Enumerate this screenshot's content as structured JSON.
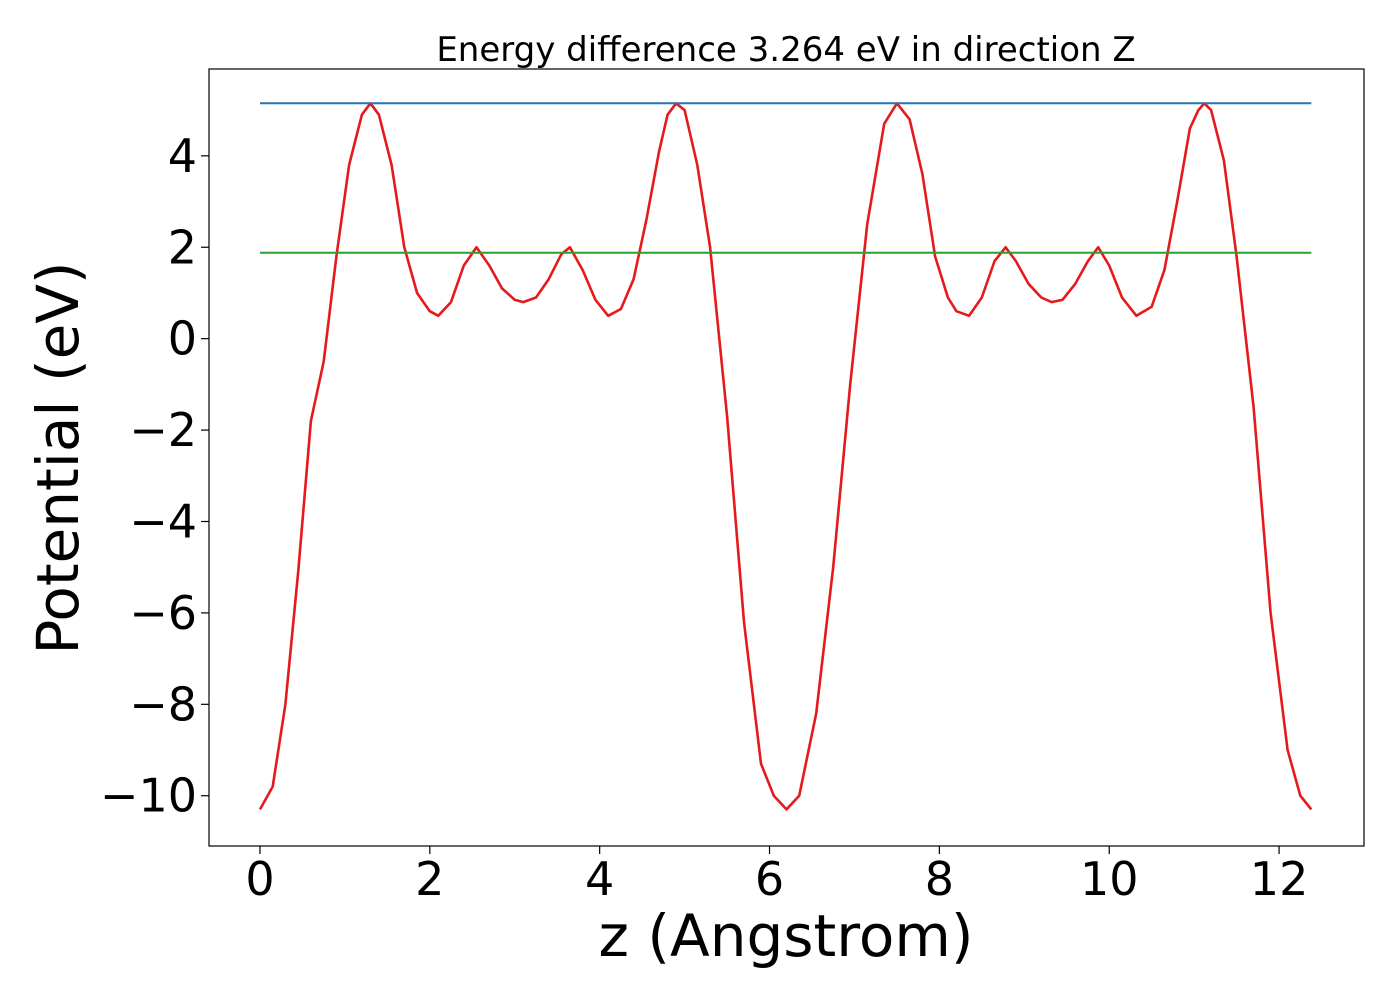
{
  "chart_data": {
    "type": "line",
    "title": "Energy difference 3.264 eV in direction Z",
    "xlabel": "z (Angstrom)",
    "ylabel": "Potential (eV)",
    "xlim": [
      -0.6,
      13.0
    ],
    "ylim": [
      -11.1,
      5.9
    ],
    "xticks": [
      0,
      2,
      4,
      6,
      8,
      10,
      12
    ],
    "yticks": [
      -10,
      -8,
      -6,
      -4,
      -2,
      0,
      2,
      4
    ],
    "xtick_labels": [
      "0",
      "2",
      "4",
      "6",
      "8",
      "10",
      "12"
    ],
    "ytick_labels": [
      "−10",
      "−8",
      "−6",
      "−4",
      "−2",
      "0",
      "2",
      "4"
    ],
    "grid": false,
    "series": [
      {
        "color": "#e41a1c",
        "x": [
          0.0,
          0.15,
          0.3,
          0.45,
          0.6,
          0.75,
          0.9,
          1.05,
          1.2,
          1.3,
          1.4,
          1.55,
          1.7,
          1.85,
          2.0,
          2.1,
          2.25,
          2.4,
          2.55,
          2.7,
          2.85,
          3.0,
          3.1,
          3.25,
          3.4,
          3.55,
          3.65,
          3.8,
          3.95,
          4.1,
          4.25,
          4.4,
          4.55,
          4.7,
          4.8,
          4.9,
          5.0,
          5.15,
          5.3,
          5.5,
          5.7,
          5.9,
          6.05,
          6.2,
          6.35,
          6.55,
          6.75,
          6.95,
          7.15,
          7.35,
          7.5,
          7.65,
          7.8,
          7.95,
          8.1,
          8.2,
          8.35,
          8.5,
          8.65,
          8.78,
          8.9,
          9.05,
          9.2,
          9.32,
          9.45,
          9.6,
          9.75,
          9.87,
          10.0,
          10.15,
          10.32,
          10.5,
          10.65,
          10.8,
          10.95,
          11.05,
          11.12,
          11.2,
          11.35,
          11.5,
          11.7,
          11.9,
          12.1,
          12.25,
          12.38
        ],
        "y": [
          -10.3,
          -9.8,
          -8.0,
          -5.1,
          -1.8,
          -0.5,
          1.8,
          3.8,
          4.9,
          5.15,
          4.9,
          3.8,
          2.0,
          1.0,
          0.6,
          0.5,
          0.8,
          1.6,
          2.0,
          1.6,
          1.1,
          0.85,
          0.8,
          0.9,
          1.3,
          1.85,
          2.0,
          1.5,
          0.85,
          0.5,
          0.65,
          1.3,
          2.6,
          4.1,
          4.9,
          5.15,
          5.0,
          3.8,
          2.0,
          -1.7,
          -6.2,
          -9.3,
          -10.0,
          -10.3,
          -10.0,
          -8.2,
          -5.0,
          -1.0,
          2.5,
          4.7,
          5.15,
          4.8,
          3.6,
          1.8,
          0.9,
          0.6,
          0.5,
          0.9,
          1.7,
          2.0,
          1.7,
          1.2,
          0.9,
          0.8,
          0.85,
          1.2,
          1.7,
          2.0,
          1.6,
          0.9,
          0.5,
          0.7,
          1.5,
          3.0,
          4.6,
          5.0,
          5.15,
          5.0,
          3.9,
          1.8,
          -1.5,
          -6.0,
          -9.0,
          -10.0,
          -10.3
        ]
      },
      {
        "color": "#1f77b4",
        "x": [
          0.0,
          12.38
        ],
        "y": [
          5.15,
          5.15
        ]
      },
      {
        "color": "#2ca02c",
        "x": [
          0.0,
          12.38
        ],
        "y": [
          1.88,
          1.88
        ]
      }
    ]
  }
}
